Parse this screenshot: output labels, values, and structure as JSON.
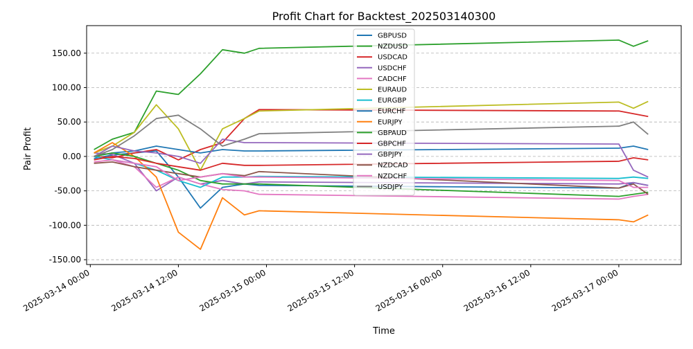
{
  "chart_data": {
    "type": "line",
    "title": "Profit Chart for Backtest_202503140300",
    "xlabel": "Time",
    "ylabel": "Pair Profit",
    "xlim": [
      "2025-03-13 23:30",
      "2025-03-17 08:30"
    ],
    "ylim": [
      -157,
      190
    ],
    "x_ticks": [
      "2025-03-14 00:00",
      "2025-03-14 12:00",
      "2025-03-15 00:00",
      "2025-03-15 12:00",
      "2025-03-16 00:00",
      "2025-03-16 12:00",
      "2025-03-17 00:00"
    ],
    "y_ticks": [
      "-150.00",
      "-100.00",
      "-50.00",
      "0.00",
      "50.00",
      "100.00",
      "150.00"
    ],
    "grid": "horizontal dashed",
    "legend_position": "top-center",
    "times": [
      "2025-03-14 00:30",
      "2025-03-14 03:00",
      "2025-03-14 06:00",
      "2025-03-14 09:00",
      "2025-03-14 12:00",
      "2025-03-14 15:00",
      "2025-03-14 18:00",
      "2025-03-14 21:00",
      "2025-03-14 23:00",
      "2025-03-17 00:00",
      "2025-03-17 02:00",
      "2025-03-17 04:00"
    ],
    "series": [
      {
        "name": "GBPUSD",
        "color": "#1f77b4",
        "values": [
          -3,
          2,
          5,
          8,
          -30,
          -75,
          -45,
          -40,
          -42,
          -46,
          -38,
          -42
        ]
      },
      {
        "name": "NZDUSD",
        "color": "#2ca02c",
        "values": [
          10,
          25,
          35,
          95,
          90,
          120,
          155,
          150,
          157,
          169,
          160,
          168
        ]
      },
      {
        "name": "USDCAD",
        "color": "#d62728",
        "values": [
          0,
          -2,
          5,
          10,
          -5,
          10,
          20,
          55,
          68,
          66,
          62,
          58
        ]
      },
      {
        "name": "USDCHF",
        "color": "#9467bd",
        "values": [
          5,
          3,
          -10,
          -50,
          -30,
          -40,
          -35,
          -40,
          -37,
          -40,
          -38,
          -42
        ]
      },
      {
        "name": "CADCHF",
        "color": "#e377c2",
        "values": [
          0,
          -5,
          -15,
          -45,
          -30,
          -40,
          -48,
          -50,
          -55,
          -62,
          -58,
          -55
        ]
      },
      {
        "name": "EURAUD",
        "color": "#bcbd22",
        "values": [
          5,
          15,
          35,
          75,
          40,
          -20,
          40,
          55,
          66,
          79,
          70,
          80
        ]
      },
      {
        "name": "EURGBP",
        "color": "#17becf",
        "values": [
          0,
          -5,
          -10,
          -20,
          -35,
          -45,
          -30,
          -30,
          -29,
          -32,
          -30,
          -32
        ]
      },
      {
        "name": "EURCHF",
        "color": "#1f77b4",
        "values": [
          0,
          5,
          8,
          15,
          10,
          5,
          10,
          8,
          8,
          12,
          15,
          10
        ]
      },
      {
        "name": "EURJPY",
        "color": "#ff7f0e",
        "values": [
          5,
          20,
          0,
          -30,
          -110,
          -135,
          -60,
          -85,
          -79,
          -92,
          -95,
          -85
        ]
      },
      {
        "name": "GBPAUD",
        "color": "#2ca02c",
        "values": [
          0,
          5,
          0,
          -10,
          -20,
          -35,
          -40,
          -40,
          -40,
          -58,
          -55,
          -52
        ]
      },
      {
        "name": "GBPCHF",
        "color": "#d62728",
        "values": [
          -5,
          0,
          -3,
          -10,
          -15,
          -20,
          -10,
          -13,
          -13,
          -7,
          -2,
          -5
        ]
      },
      {
        "name": "GBPJPY",
        "color": "#9467bd",
        "values": [
          0,
          15,
          8,
          5,
          0,
          -10,
          25,
          20,
          20,
          18,
          -20,
          -30
        ]
      },
      {
        "name": "NZDCAD",
        "color": "#8c564b",
        "values": [
          -10,
          -8,
          -15,
          -20,
          -25,
          -30,
          -25,
          -28,
          -22,
          -46,
          -40,
          -55
        ]
      },
      {
        "name": "NZDCHF",
        "color": "#e377c2",
        "values": [
          -8,
          -5,
          -10,
          -15,
          -35,
          -30,
          -25,
          -30,
          -30,
          -35,
          -45,
          -45
        ]
      },
      {
        "name": "USDJPY",
        "color": "#7f7f7f",
        "values": [
          0,
          10,
          30,
          55,
          60,
          40,
          15,
          25,
          33,
          44,
          50,
          32
        ]
      }
    ]
  }
}
